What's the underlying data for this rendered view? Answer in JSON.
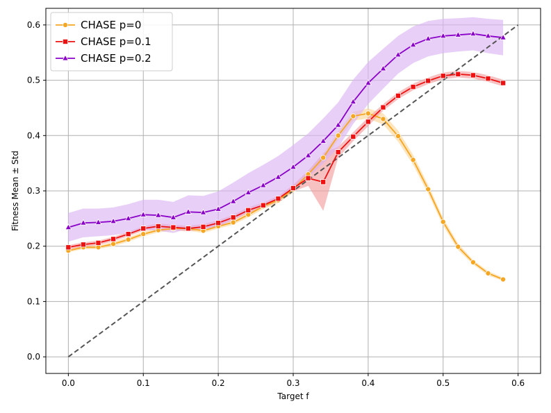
{
  "chart_data": {
    "type": "line",
    "title": "",
    "xlabel": "Target f",
    "ylabel": "Fitness Mean ± Std",
    "xlim": [
      -0.03,
      0.63
    ],
    "ylim": [
      -0.03,
      0.63
    ],
    "grid": true,
    "legend_position": "top-left",
    "x_ticks": [
      0.0,
      0.1,
      0.2,
      0.3,
      0.4,
      0.5,
      0.6
    ],
    "x_tick_labels": [
      "0.0",
      "0.1",
      "0.2",
      "0.3",
      "0.4",
      "0.5",
      "0.6"
    ],
    "y_ticks": [
      0.0,
      0.1,
      0.2,
      0.3,
      0.4,
      0.5,
      0.6
    ],
    "y_tick_labels": [
      "0.0",
      "0.1",
      "0.2",
      "0.3",
      "0.4",
      "0.5",
      "0.6"
    ],
    "x": [
      0.0,
      0.02,
      0.04,
      0.06,
      0.08,
      0.1,
      0.12,
      0.14,
      0.16,
      0.18,
      0.2,
      0.22,
      0.24,
      0.26,
      0.28,
      0.3,
      0.32,
      0.34,
      0.36,
      0.38,
      0.4,
      0.42,
      0.44,
      0.46,
      0.48,
      0.5,
      0.52,
      0.54,
      0.56,
      0.58
    ],
    "reference_line": {
      "name": "y = x",
      "x": [
        0.0,
        0.6
      ],
      "y": [
        0.0,
        0.6
      ],
      "color": "#555555"
    },
    "series": [
      {
        "name": "CHASE p=0",
        "color": "#f5a623",
        "band_color": "#ffd79a",
        "marker": "circle",
        "values": [
          0.192,
          0.198,
          0.198,
          0.204,
          0.212,
          0.222,
          0.229,
          0.232,
          0.232,
          0.228,
          0.236,
          0.243,
          0.257,
          0.272,
          0.283,
          0.303,
          0.33,
          0.36,
          0.4,
          0.435,
          0.44,
          0.43,
          0.399,
          0.356,
          0.303,
          0.244,
          0.199,
          0.171,
          0.151,
          0.14
        ],
        "std": [
          0.003,
          0.003,
          0.003,
          0.004,
          0.004,
          0.004,
          0.004,
          0.004,
          0.004,
          0.004,
          0.004,
          0.004,
          0.005,
          0.005,
          0.005,
          0.006,
          0.006,
          0.007,
          0.008,
          0.008,
          0.009,
          0.01,
          0.01,
          0.009,
          0.008,
          0.007,
          0.006,
          0.004,
          0.004,
          0.003
        ]
      },
      {
        "name": "CHASE p=0.1",
        "color": "#ee1111",
        "band_color": "#f4a0a0",
        "marker": "square",
        "values": [
          0.198,
          0.203,
          0.206,
          0.213,
          0.222,
          0.232,
          0.236,
          0.234,
          0.232,
          0.235,
          0.242,
          0.252,
          0.265,
          0.274,
          0.286,
          0.305,
          0.323,
          0.316,
          0.37,
          0.398,
          0.425,
          0.451,
          0.472,
          0.488,
          0.499,
          0.508,
          0.511,
          0.509,
          0.503,
          0.495
        ],
        "std": [
          0.004,
          0.004,
          0.004,
          0.004,
          0.004,
          0.004,
          0.005,
          0.005,
          0.005,
          0.005,
          0.005,
          0.005,
          0.005,
          0.005,
          0.005,
          0.006,
          0.014,
          0.052,
          0.01,
          0.008,
          0.008,
          0.006,
          0.006,
          0.006,
          0.006,
          0.006,
          0.006,
          0.006,
          0.006,
          0.006
        ]
      },
      {
        "name": "CHASE p=0.2",
        "color": "#8a00c8",
        "band_color": "#dcb6f2",
        "marker": "triangle",
        "values": [
          0.234,
          0.242,
          0.243,
          0.245,
          0.25,
          0.257,
          0.256,
          0.252,
          0.262,
          0.261,
          0.267,
          0.281,
          0.297,
          0.31,
          0.325,
          0.343,
          0.364,
          0.39,
          0.419,
          0.461,
          0.495,
          0.521,
          0.546,
          0.564,
          0.575,
          0.58,
          0.582,
          0.584,
          0.58,
          0.577
        ],
        "std": [
          0.026,
          0.026,
          0.025,
          0.025,
          0.026,
          0.027,
          0.028,
          0.028,
          0.03,
          0.03,
          0.032,
          0.034,
          0.035,
          0.037,
          0.038,
          0.04,
          0.04,
          0.041,
          0.041,
          0.04,
          0.038,
          0.036,
          0.034,
          0.033,
          0.032,
          0.031,
          0.03,
          0.03,
          0.031,
          0.032
        ]
      }
    ]
  }
}
